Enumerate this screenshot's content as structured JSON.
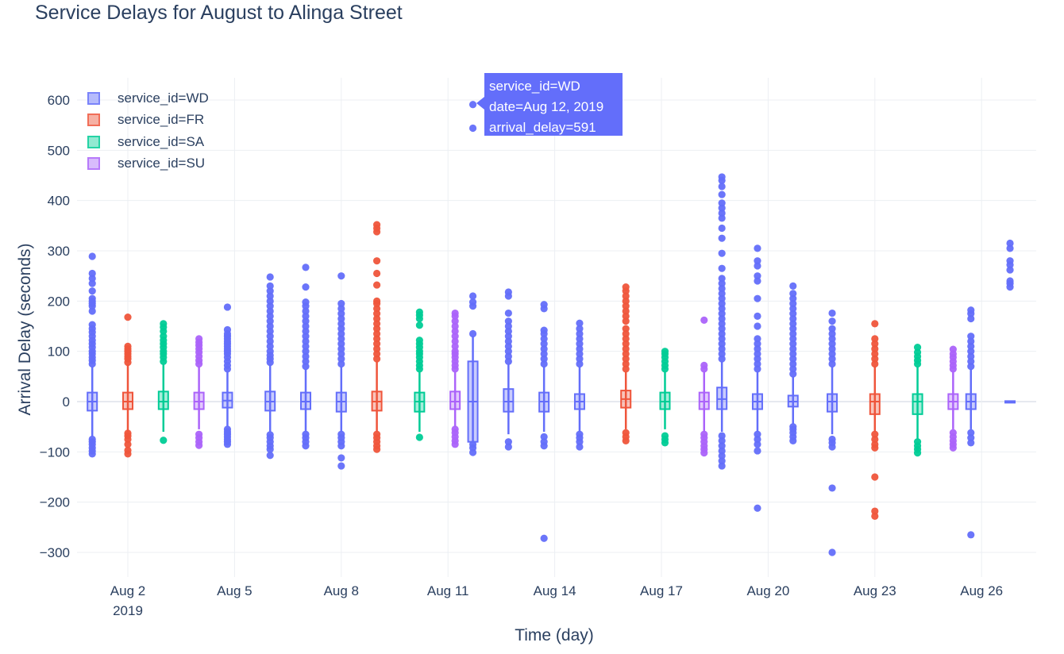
{
  "title": "Service Delays for August to Alinga Street",
  "tooltip": {
    "line1": "service_id=WD",
    "line2": "date=Aug 12, 2019",
    "line3": "arrival_delay=591",
    "color": "#636efa"
  },
  "chart_data": {
    "type": "box",
    "title": "Service Delays for August to Alinga Street",
    "xlabel": "Time (day)",
    "ylabel": "Arrival Delay (seconds)",
    "xlim": [
      "Jul 31, 2019",
      "Aug 27, 2019"
    ],
    "ylim": [
      -340,
      640
    ],
    "grid": true,
    "legend_position": "top-left",
    "x_ticks": [
      {
        "label": "Aug 2",
        "sub": "2019",
        "day": 2
      },
      {
        "label": "Aug 5",
        "sub": "",
        "day": 5
      },
      {
        "label": "Aug 8",
        "sub": "",
        "day": 8
      },
      {
        "label": "Aug 11",
        "sub": "",
        "day": 11
      },
      {
        "label": "Aug 14",
        "sub": "",
        "day": 14
      },
      {
        "label": "Aug 17",
        "sub": "",
        "day": 17
      },
      {
        "label": "Aug 20",
        "sub": "",
        "day": 20
      },
      {
        "label": "Aug 23",
        "sub": "",
        "day": 23
      },
      {
        "label": "Aug 26",
        "sub": "",
        "day": 26
      }
    ],
    "y_ticks": [
      {
        "label": "600",
        "value": 600
      },
      {
        "label": "500",
        "value": 500
      },
      {
        "label": "400",
        "value": 400
      },
      {
        "label": "300",
        "value": 300
      },
      {
        "label": "200",
        "value": 200
      },
      {
        "label": "100",
        "value": 100
      },
      {
        "label": "0",
        "value": 0
      },
      {
        "label": "−100",
        "value": -100
      },
      {
        "label": "−200",
        "value": -200
      },
      {
        "label": "−300",
        "value": -300
      }
    ],
    "series": [
      {
        "name": "service_id=WD",
        "color": "#636efa"
      },
      {
        "name": "service_id=FR",
        "color": "#ef553b"
      },
      {
        "name": "service_id=SA",
        "color": "#00cc96"
      },
      {
        "name": "service_id=SU",
        "color": "#ab63fa"
      }
    ],
    "boxes": [
      {
        "date": "Aug 1, 2019",
        "day": 1,
        "series": 0,
        "q1": -18,
        "median": 0,
        "q3": 18,
        "whisker_low": -70,
        "whisker_high": 70,
        "outliers": [
          -104,
          -98,
          -92,
          -85,
          -80,
          -75,
          75,
          82,
          88,
          95,
          100,
          108,
          115,
          122,
          130,
          138,
          145,
          153,
          180,
          190,
          195,
          200,
          205,
          220,
          235,
          245,
          255,
          289
        ]
      },
      {
        "date": "Aug 2, 2019",
        "day": 2,
        "series": 1,
        "q1": -15,
        "median": 0,
        "q3": 18,
        "whisker_low": -60,
        "whisker_high": 75,
        "outliers": [
          -104,
          -97,
          -85,
          -75,
          -68,
          -63,
          78,
          85,
          90,
          95,
          100,
          105,
          110,
          168
        ]
      },
      {
        "date": "Aug 3, 2019",
        "day": 3,
        "series": 2,
        "q1": -15,
        "median": 0,
        "q3": 20,
        "whisker_low": -60,
        "whisker_high": 75,
        "outliers": [
          -77,
          80,
          88,
          95,
          100,
          108,
          115,
          122,
          130,
          140,
          148,
          155
        ]
      },
      {
        "date": "Aug 4, 2019",
        "day": 4,
        "series": 3,
        "q1": -15,
        "median": 0,
        "q3": 18,
        "whisker_low": -55,
        "whisker_high": 70,
        "outliers": [
          -87,
          -80,
          -72,
          -65,
          75,
          82,
          90,
          98,
          105,
          112,
          118,
          125
        ]
      },
      {
        "date": "Aug 5, 2019",
        "day": 4.8,
        "series": 0,
        "q1": -12,
        "median": 2,
        "q3": 18,
        "whisker_low": -50,
        "whisker_high": 60,
        "outliers": [
          -85,
          -80,
          -75,
          -70,
          -65,
          -60,
          -55,
          65,
          72,
          80,
          88,
          95,
          100,
          105,
          110,
          115,
          120,
          125,
          130,
          135,
          143,
          188
        ]
      },
      {
        "date": "Aug 6, 2019",
        "day": 6,
        "series": 0,
        "q1": -18,
        "median": 0,
        "q3": 20,
        "whisker_low": -60,
        "whisker_high": 75,
        "outliers": [
          -107,
          -95,
          -88,
          -80,
          -72,
          -66,
          78,
          85,
          92,
          100,
          110,
          120,
          130,
          140,
          150,
          160,
          170,
          180,
          190,
          200,
          210,
          220,
          230,
          248
        ]
      },
      {
        "date": "Aug 7, 2019",
        "day": 7,
        "series": 0,
        "q1": -15,
        "median": 0,
        "q3": 18,
        "whisker_low": -60,
        "whisker_high": 65,
        "outliers": [
          -88,
          -80,
          -72,
          -65,
          70,
          80,
          90,
          100,
          110,
          120,
          130,
          140,
          150,
          160,
          170,
          180,
          190,
          198,
          228,
          267
        ]
      },
      {
        "date": "Aug 8, 2019",
        "day": 8,
        "series": 0,
        "q1": -20,
        "median": 0,
        "q3": 18,
        "whisker_low": -60,
        "whisker_high": 70,
        "outliers": [
          -128,
          -112,
          -88,
          -80,
          -72,
          -65,
          75,
          85,
          95,
          105,
          115,
          125,
          135,
          145,
          155,
          165,
          175,
          185,
          195,
          250
        ]
      },
      {
        "date": "Aug 9, 2019",
        "day": 9,
        "series": 1,
        "q1": -18,
        "median": 0,
        "q3": 20,
        "whisker_low": -60,
        "whisker_high": 80,
        "outliers": [
          -95,
          -88,
          -80,
          -72,
          -65,
          85,
          95,
          105,
          115,
          125,
          135,
          145,
          155,
          165,
          175,
          185,
          195,
          200,
          232,
          255,
          280,
          338,
          345,
          352
        ]
      },
      {
        "date": "Aug 10, 2019",
        "day": 10.2,
        "series": 2,
        "q1": -20,
        "median": 0,
        "q3": 18,
        "whisker_low": -60,
        "whisker_high": 60,
        "outliers": [
          -71,
          65,
          72,
          80,
          88,
          95,
          100,
          108,
          115,
          122,
          152,
          165,
          172,
          178
        ]
      },
      {
        "date": "Aug 11, 2019",
        "day": 11.2,
        "series": 3,
        "q1": -15,
        "median": 0,
        "q3": 20,
        "whisker_low": -50,
        "whisker_high": 60,
        "outliers": [
          -85,
          -78,
          -70,
          -62,
          -55,
          65,
          72,
          80,
          88,
          95,
          100,
          110,
          120,
          130,
          140,
          150,
          160,
          170,
          176
        ]
      },
      {
        "date": "Aug 12, 2019",
        "day": 11.7,
        "series": 0,
        "q1": -80,
        "median": 0,
        "q3": 80,
        "whisker_low": -80,
        "whisker_high": 130,
        "outliers": [
          -101,
          -92,
          -85,
          135,
          190,
          198,
          210,
          544,
          591
        ]
      },
      {
        "date": "Aug 13, 2019",
        "day": 12.7,
        "series": 0,
        "q1": -20,
        "median": 0,
        "q3": 25,
        "whisker_low": -65,
        "whisker_high": 75,
        "outliers": [
          -90,
          -80,
          80,
          90,
          100,
          110,
          120,
          130,
          140,
          150,
          160,
          176,
          210,
          218
        ]
      },
      {
        "date": "Aug 14, 2019",
        "day": 13.7,
        "series": 0,
        "q1": -20,
        "median": 0,
        "q3": 18,
        "whisker_low": -60,
        "whisker_high": 70,
        "outliers": [
          -272,
          -88,
          -80,
          -70,
          75,
          85,
          95,
          105,
          115,
          125,
          135,
          142,
          185,
          193
        ]
      },
      {
        "date": "Aug 15, 2019",
        "day": 14.7,
        "series": 0,
        "q1": -15,
        "median": 0,
        "q3": 15,
        "whisker_low": -60,
        "whisker_high": 70,
        "outliers": [
          -90,
          -80,
          -72,
          -65,
          75,
          85,
          95,
          105,
          115,
          125,
          135,
          145,
          156
        ]
      },
      {
        "date": "Aug 16, 2019",
        "day": 16,
        "series": 1,
        "q1": -12,
        "median": 5,
        "q3": 22,
        "whisker_low": -55,
        "whisker_high": 60,
        "outliers": [
          -78,
          -70,
          -62,
          65,
          75,
          85,
          95,
          105,
          115,
          125,
          135,
          145,
          160,
          170,
          180,
          190,
          200,
          210,
          220,
          228
        ]
      },
      {
        "date": "Aug 17, 2019",
        "day": 17.1,
        "series": 2,
        "q1": -15,
        "median": 0,
        "q3": 18,
        "whisker_low": -55,
        "whisker_high": 60,
        "outliers": [
          -82,
          -75,
          -68,
          65,
          72,
          80,
          88,
          95,
          100
        ]
      },
      {
        "date": "Aug 18, 2019",
        "day": 18.2,
        "series": 3,
        "q1": -15,
        "median": 0,
        "q3": 18,
        "whisker_low": -60,
        "whisker_high": 60,
        "outliers": [
          -102,
          -95,
          -88,
          -80,
          -72,
          -65,
          65,
          72,
          162
        ]
      },
      {
        "date": "Aug 19, 2019",
        "day": 18.7,
        "series": 0,
        "q1": -15,
        "median": 5,
        "q3": 28,
        "whisker_low": -60,
        "whisker_high": 80,
        "outliers": [
          -128,
          -118,
          -108,
          -98,
          -88,
          -78,
          -68,
          85,
          95,
          105,
          115,
          125,
          135,
          145,
          155,
          165,
          175,
          185,
          195,
          205,
          215,
          225,
          235,
          245,
          265,
          295,
          325,
          345,
          365,
          375,
          385,
          395,
          412,
          428,
          440,
          447
        ]
      },
      {
        "date": "Aug 20, 2019",
        "day": 19.7,
        "series": 0,
        "q1": -15,
        "median": 0,
        "q3": 15,
        "whisker_low": -60,
        "whisker_high": 60,
        "outliers": [
          -212,
          -98,
          -85,
          -75,
          -65,
          65,
          75,
          85,
          95,
          105,
          115,
          125,
          150,
          170,
          205,
          240,
          250,
          270,
          280,
          305
        ]
      },
      {
        "date": "Aug 21, 2019",
        "day": 20.7,
        "series": 0,
        "q1": -10,
        "median": 0,
        "q3": 12,
        "whisker_low": -45,
        "whisker_high": 50,
        "outliers": [
          -78,
          -70,
          -62,
          -55,
          -50,
          55,
          65,
          75,
          85,
          95,
          105,
          115,
          125,
          135,
          145,
          155,
          165,
          175,
          185,
          195,
          205,
          215,
          230
        ]
      },
      {
        "date": "Aug 22, 2019",
        "day": 21.8,
        "series": 0,
        "q1": -20,
        "median": 0,
        "q3": 15,
        "whisker_low": -65,
        "whisker_high": 70,
        "outliers": [
          -300,
          -172,
          -90,
          -82,
          -75,
          75,
          85,
          95,
          105,
          115,
          125,
          135,
          145,
          160,
          176
        ]
      },
      {
        "date": "Aug 23, 2019",
        "day": 23,
        "series": 1,
        "q1": -25,
        "median": 0,
        "q3": 15,
        "whisker_low": -60,
        "whisker_high": 70,
        "outliers": [
          -228,
          -218,
          -150,
          -92,
          -85,
          -75,
          -65,
          75,
          85,
          95,
          105,
          115,
          125,
          155
        ]
      },
      {
        "date": "Aug 24, 2019",
        "day": 24.2,
        "series": 2,
        "q1": -25,
        "median": 0,
        "q3": 15,
        "whisker_low": -75,
        "whisker_high": 70,
        "outliers": [
          -102,
          -95,
          -88,
          -80,
          75,
          82,
          90,
          98,
          108
        ]
      },
      {
        "date": "Aug 25, 2019",
        "day": 25.2,
        "series": 3,
        "q1": -15,
        "median": 0,
        "q3": 15,
        "whisker_low": -55,
        "whisker_high": 60,
        "outliers": [
          -92,
          -85,
          -78,
          -70,
          -62,
          65,
          72,
          80,
          88,
          95,
          104
        ]
      },
      {
        "date": "Aug 26, 2019",
        "day": 25.7,
        "series": 0,
        "q1": -15,
        "median": 0,
        "q3": 15,
        "whisker_low": -55,
        "whisker_high": 65,
        "outliers": [
          -265,
          -82,
          -72,
          -62,
          70,
          80,
          90,
          100,
          110,
          120,
          130,
          165,
          175,
          182
        ]
      },
      {
        "date": "Aug 27, 2019",
        "day": 26.8,
        "series": 0,
        "q1": -1,
        "median": 0,
        "q3": 1,
        "whisker_low": -1,
        "whisker_high": 1,
        "outliers": [
          228,
          235,
          240,
          262,
          272,
          280,
          305,
          315
        ]
      }
    ]
  }
}
